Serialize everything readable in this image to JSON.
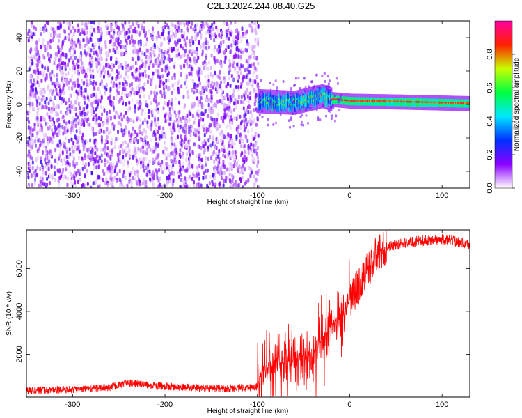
{
  "title": "C2E3.2024.244.08.40.G25",
  "chart_data": [
    {
      "type": "heatmap",
      "xlabel": "Height of straight line (km)",
      "ylabel": "Frequency (Hz)",
      "xlim": [
        -350,
        130
      ],
      "ylim": [
        -50,
        50
      ],
      "xticks": [
        -300,
        -200,
        -100,
        0,
        100
      ],
      "yticks": [
        -40,
        -20,
        0,
        20,
        40
      ],
      "xtick_labels": [
        "-300",
        "-200",
        "-100",
        "0",
        "100"
      ],
      "ytick_labels": [
        "-40",
        "-20",
        "0",
        "20",
        "40"
      ],
      "colorbar": {
        "label": "Normalized spectral amplitude",
        "range": [
          0,
          1
        ],
        "ticks": [
          0.0,
          0.2,
          0.4,
          0.6,
          0.8
        ],
        "tick_labels": [
          "0.0",
          "0.2",
          "0.4",
          "0.6",
          "0.8"
        ],
        "colors": [
          "#ffffff",
          "#8a00ff",
          "#0030ff",
          "#00e8ff",
          "#00ff40",
          "#c8ff00",
          "#ff2000",
          "#ff00a0"
        ]
      },
      "features": {
        "noise_region_x": [
          -350,
          -100
        ],
        "noise_level": 0.15,
        "signal_line": [
          {
            "x": -100,
            "y": 2
          },
          {
            "x": -60,
            "y": 1
          },
          {
            "x": -30,
            "y": 5
          },
          {
            "x": -20,
            "y": 3
          },
          {
            "x": 0,
            "y": 2
          },
          {
            "x": 50,
            "y": 1.5
          },
          {
            "x": 130,
            "y": 0.5
          }
        ]
      }
    },
    {
      "type": "line",
      "xlabel": "Height of straight line (km)",
      "ylabel": "SNR (10 * v/v)",
      "xlim": [
        -350,
        130
      ],
      "ylim": [
        0,
        7800
      ],
      "xticks": [
        -300,
        -200,
        -100,
        0,
        100
      ],
      "yticks": [
        2000,
        4000,
        6000
      ],
      "xtick_labels": [
        "-300",
        "-200",
        "-100",
        "0",
        "100"
      ],
      "ytick_labels": [
        "2000",
        "4000",
        "6000"
      ],
      "color": "#ff0000",
      "series": [
        {
          "x": [
            -350,
            -300,
            -260,
            -240,
            -200,
            -150,
            -110,
            -100,
            -95,
            -85,
            -75,
            -65,
            -55,
            -45,
            -35,
            -25,
            -15,
            -5,
            0,
            10,
            20,
            30,
            40,
            50,
            60,
            80,
            100,
            120,
            130
          ],
          "values": [
            300,
            350,
            450,
            650,
            500,
            400,
            450,
            500,
            1200,
            1500,
            1600,
            1700,
            1800,
            2000,
            2300,
            3000,
            3600,
            4000,
            4500,
            5200,
            6000,
            6700,
            7000,
            7100,
            7200,
            7300,
            7350,
            7250,
            7100
          ]
        }
      ]
    }
  ]
}
